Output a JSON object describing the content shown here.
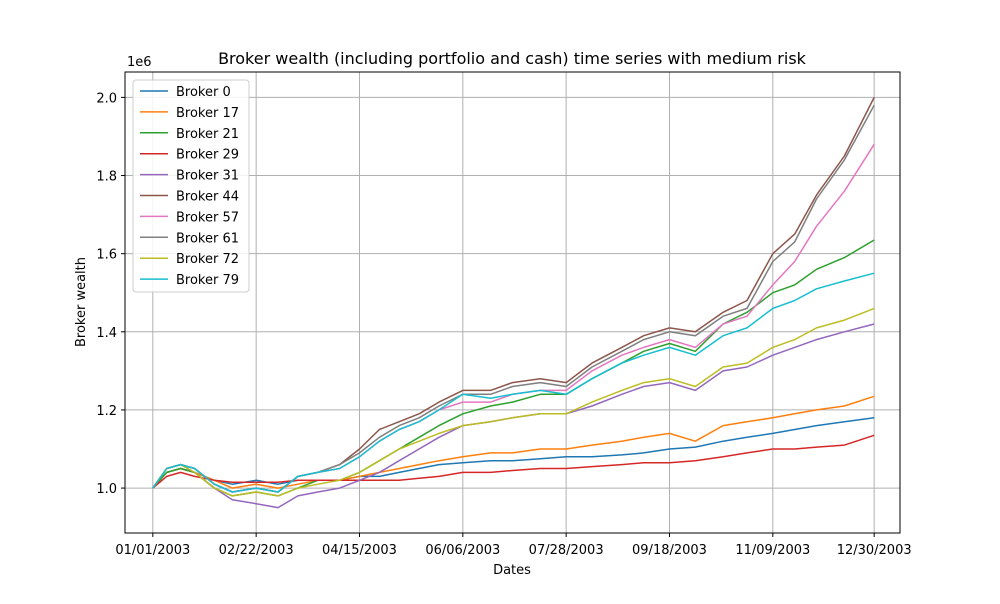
{
  "chart_data": {
    "type": "line",
    "title": "Broker wealth (including portfolio and cash) time series with medium risk",
    "xlabel": "Dates",
    "ylabel": "Broker wealth",
    "y_offset_label": "1e6",
    "xlim": [
      "2002-12-18",
      "2004-01-12"
    ],
    "ylim": [
      0.885,
      2.065
    ],
    "x_ticks": [
      "2003-01-01",
      "2003-02-22",
      "2003-04-15",
      "2003-06-06",
      "2003-07-28",
      "2003-09-18",
      "2003-11-09",
      "2003-12-30"
    ],
    "x_tick_labels": [
      "01/01/2003",
      "02/22/2003",
      "04/15/2003",
      "06/06/2003",
      "07/28/2003",
      "09/18/2003",
      "11/09/2003",
      "12/30/2003"
    ],
    "y_ticks": [
      1.0,
      1.2,
      1.4,
      1.6,
      1.8,
      2.0
    ],
    "y_tick_labels": [
      "1.0",
      "1.2",
      "1.4",
      "1.6",
      "1.8",
      "2.0"
    ],
    "grid": true,
    "legend_position": "upper left",
    "x": [
      "2003-01-01",
      "2003-01-08",
      "2003-01-15",
      "2003-01-22",
      "2003-02-01",
      "2003-02-10",
      "2003-02-22",
      "2003-03-05",
      "2003-03-15",
      "2003-03-25",
      "2003-04-05",
      "2003-04-15",
      "2003-04-25",
      "2003-05-05",
      "2003-05-15",
      "2003-05-25",
      "2003-06-06",
      "2003-06-20",
      "2003-07-01",
      "2003-07-15",
      "2003-07-28",
      "2003-08-10",
      "2003-08-25",
      "2003-09-05",
      "2003-09-18",
      "2003-10-01",
      "2003-10-15",
      "2003-10-27",
      "2003-11-09",
      "2003-11-20",
      "2003-12-01",
      "2003-12-15",
      "2003-12-30"
    ],
    "series": [
      {
        "name": "Broker 0",
        "color": "#1f77b4",
        "values": [
          1.0,
          1.04,
          1.05,
          1.04,
          1.02,
          1.01,
          1.02,
          1.01,
          1.02,
          1.02,
          1.02,
          1.03,
          1.03,
          1.04,
          1.05,
          1.06,
          1.065,
          1.07,
          1.07,
          1.075,
          1.08,
          1.08,
          1.085,
          1.09,
          1.1,
          1.105,
          1.12,
          1.13,
          1.14,
          1.15,
          1.16,
          1.17,
          1.18
        ]
      },
      {
        "name": "Broker 17",
        "color": "#ff7f0e",
        "values": [
          1.0,
          1.04,
          1.05,
          1.04,
          1.02,
          1.0,
          1.01,
          1.0,
          1.01,
          1.02,
          1.02,
          1.03,
          1.04,
          1.05,
          1.06,
          1.07,
          1.08,
          1.09,
          1.09,
          1.1,
          1.1,
          1.11,
          1.12,
          1.13,
          1.14,
          1.12,
          1.16,
          1.17,
          1.18,
          1.19,
          1.2,
          1.21,
          1.235
        ]
      },
      {
        "name": "Broker 21",
        "color": "#2ca02c",
        "values": [
          1.0,
          1.04,
          1.05,
          1.04,
          1.0,
          0.98,
          0.99,
          0.98,
          1.0,
          1.02,
          1.02,
          1.04,
          1.07,
          1.1,
          1.13,
          1.16,
          1.19,
          1.21,
          1.22,
          1.24,
          1.24,
          1.28,
          1.32,
          1.35,
          1.37,
          1.35,
          1.42,
          1.45,
          1.5,
          1.52,
          1.56,
          1.59,
          1.635
        ]
      },
      {
        "name": "Broker 29",
        "color": "#d62728",
        "values": [
          1.0,
          1.03,
          1.04,
          1.03,
          1.02,
          1.015,
          1.015,
          1.015,
          1.02,
          1.02,
          1.02,
          1.02,
          1.02,
          1.02,
          1.025,
          1.03,
          1.04,
          1.04,
          1.045,
          1.05,
          1.05,
          1.055,
          1.06,
          1.065,
          1.065,
          1.07,
          1.08,
          1.09,
          1.1,
          1.1,
          1.105,
          1.11,
          1.135
        ]
      },
      {
        "name": "Broker 31",
        "color": "#9467bd",
        "values": [
          1.0,
          1.05,
          1.06,
          1.04,
          1.0,
          0.97,
          0.96,
          0.95,
          0.98,
          0.99,
          1.0,
          1.02,
          1.04,
          1.07,
          1.1,
          1.13,
          1.16,
          1.17,
          1.18,
          1.19,
          1.19,
          1.21,
          1.24,
          1.26,
          1.27,
          1.25,
          1.3,
          1.31,
          1.34,
          1.36,
          1.38,
          1.4,
          1.42
        ]
      },
      {
        "name": "Broker 44",
        "color": "#8c564b",
        "values": [
          1.0,
          1.05,
          1.06,
          1.05,
          1.01,
          0.99,
          1.0,
          0.99,
          1.03,
          1.04,
          1.06,
          1.1,
          1.15,
          1.17,
          1.19,
          1.22,
          1.25,
          1.25,
          1.27,
          1.28,
          1.27,
          1.32,
          1.36,
          1.39,
          1.41,
          1.4,
          1.45,
          1.48,
          1.6,
          1.65,
          1.75,
          1.85,
          2.0
        ]
      },
      {
        "name": "Broker 57",
        "color": "#e377c2",
        "values": [
          1.0,
          1.05,
          1.06,
          1.05,
          1.01,
          0.99,
          1.0,
          0.99,
          1.03,
          1.04,
          1.05,
          1.08,
          1.12,
          1.15,
          1.17,
          1.2,
          1.22,
          1.22,
          1.24,
          1.25,
          1.25,
          1.3,
          1.34,
          1.36,
          1.38,
          1.36,
          1.42,
          1.44,
          1.52,
          1.58,
          1.67,
          1.76,
          1.88
        ]
      },
      {
        "name": "Broker 61",
        "color": "#7f7f7f",
        "values": [
          1.0,
          1.05,
          1.06,
          1.05,
          1.01,
          0.99,
          1.0,
          0.99,
          1.03,
          1.04,
          1.06,
          1.09,
          1.13,
          1.16,
          1.18,
          1.21,
          1.24,
          1.24,
          1.26,
          1.27,
          1.26,
          1.31,
          1.35,
          1.38,
          1.4,
          1.39,
          1.44,
          1.46,
          1.58,
          1.63,
          1.74,
          1.84,
          1.98
        ]
      },
      {
        "name": "Broker 72",
        "color": "#bcbd22",
        "values": [
          1.0,
          1.05,
          1.06,
          1.04,
          1.0,
          0.98,
          0.99,
          0.98,
          1.0,
          1.01,
          1.02,
          1.04,
          1.07,
          1.1,
          1.12,
          1.14,
          1.16,
          1.17,
          1.18,
          1.19,
          1.19,
          1.22,
          1.25,
          1.27,
          1.28,
          1.26,
          1.31,
          1.32,
          1.36,
          1.38,
          1.41,
          1.43,
          1.46
        ]
      },
      {
        "name": "Broker 79",
        "color": "#17becf",
        "values": [
          1.0,
          1.05,
          1.06,
          1.05,
          1.01,
          0.99,
          1.0,
          0.99,
          1.03,
          1.04,
          1.05,
          1.08,
          1.12,
          1.15,
          1.17,
          1.2,
          1.24,
          1.23,
          1.24,
          1.25,
          1.24,
          1.28,
          1.32,
          1.34,
          1.36,
          1.34,
          1.39,
          1.41,
          1.46,
          1.48,
          1.51,
          1.53,
          1.55
        ]
      }
    ]
  }
}
